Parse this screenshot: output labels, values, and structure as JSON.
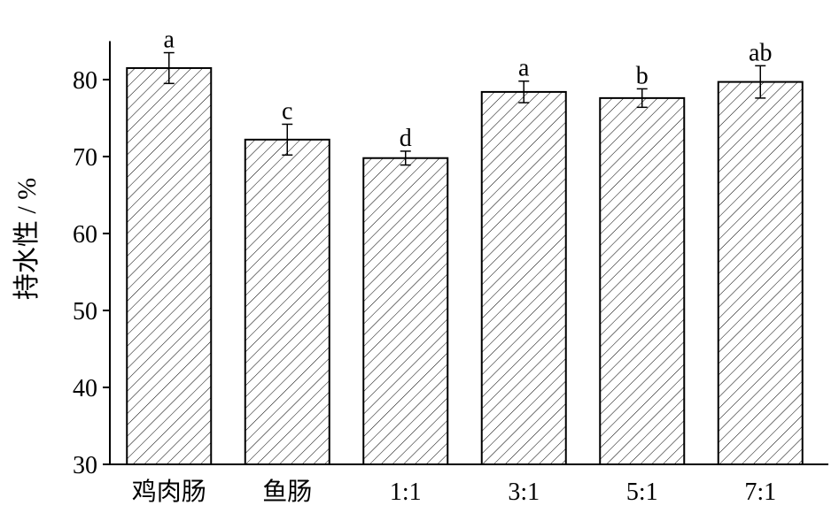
{
  "chart_data": {
    "type": "bar",
    "y_label": "持水性 / %",
    "categories": [
      "鸡肉肠",
      "鱼肠",
      "1:1",
      "3:1",
      "5:1",
      "7:1"
    ],
    "values": [
      81.5,
      72.2,
      69.8,
      78.4,
      77.6,
      79.7
    ],
    "errors": [
      2.0,
      2.0,
      0.9,
      1.4,
      1.2,
      2.1
    ],
    "significance": [
      "a",
      "c",
      "d",
      "a",
      "b",
      "ab"
    ],
    "color": "#000000",
    "ylim": [
      30,
      85
    ],
    "yticks": [
      30,
      40,
      50,
      60,
      70,
      80
    ]
  }
}
